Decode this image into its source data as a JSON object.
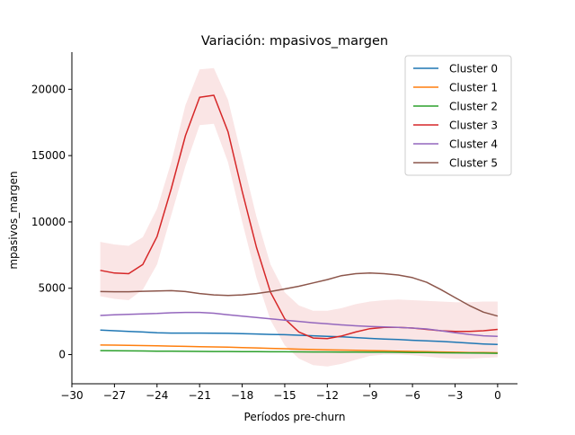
{
  "chart_data": {
    "type": "line",
    "title": "Variación: mpasivos_margen",
    "xlabel": "Períodos pre-churn",
    "ylabel": "mpasivos_margen",
    "xlim": [
      -30,
      1.4
    ],
    "ylim": [
      -2200,
      22800
    ],
    "xticks": [
      -30,
      -27,
      -24,
      -21,
      -18,
      -15,
      -12,
      -9,
      -6,
      -3,
      0
    ],
    "xtick_labels": [
      "−30",
      "−27",
      "−24",
      "−21",
      "−18",
      "−15",
      "−12",
      "−9",
      "−6",
      "−3",
      "0"
    ],
    "yticks": [
      0,
      5000,
      10000,
      15000,
      20000
    ],
    "ytick_labels": [
      "0",
      "5000",
      "10000",
      "15000",
      "20000"
    ],
    "grid": false,
    "legend_position": "top-right",
    "x": [
      -28,
      -27,
      -26,
      -25,
      -24,
      -23,
      -22,
      -21,
      -20,
      -19,
      -18,
      -17,
      -16,
      -15,
      -14,
      -13,
      -12,
      -11,
      -10,
      -9,
      -8,
      -7,
      -6,
      -5,
      -4,
      -3,
      -2,
      -1,
      0
    ],
    "series": [
      {
        "name": "Cluster 0",
        "color": "#1f77b4",
        "values": [
          1850,
          1800,
          1750,
          1700,
          1650,
          1620,
          1620,
          1620,
          1610,
          1600,
          1580,
          1550,
          1520,
          1500,
          1460,
          1420,
          1380,
          1340,
          1280,
          1220,
          1170,
          1130,
          1080,
          1040,
          990,
          930,
          860,
          800,
          760
        ],
        "band": null
      },
      {
        "name": "Cluster 1",
        "color": "#ff7f0e",
        "values": [
          720,
          710,
          700,
          680,
          660,
          640,
          620,
          600,
          580,
          560,
          530,
          500,
          470,
          440,
          410,
          380,
          360,
          340,
          320,
          300,
          280,
          260,
          240,
          220,
          200,
          180,
          160,
          150,
          140
        ],
        "band": null
      },
      {
        "name": "Cluster 2",
        "color": "#2ca02c",
        "values": [
          300,
          290,
          280,
          270,
          260,
          250,
          245,
          240,
          235,
          230,
          225,
          220,
          215,
          210,
          205,
          200,
          195,
          190,
          185,
          180,
          175,
          170,
          160,
          150,
          140,
          130,
          120,
          110,
          100
        ],
        "band": null
      },
      {
        "name": "Cluster 3",
        "color": "#d62728",
        "values": [
          6350,
          6150,
          6100,
          6800,
          8900,
          12500,
          16500,
          19400,
          19550,
          16800,
          12300,
          8100,
          4700,
          2700,
          1700,
          1250,
          1200,
          1400,
          1700,
          1950,
          2050,
          2050,
          2000,
          1900,
          1800,
          1750,
          1750,
          1800,
          1900
        ],
        "band": {
          "upper": [
            8500,
            8300,
            8200,
            8850,
            11000,
            14500,
            18800,
            21500,
            21600,
            19200,
            14800,
            10400,
            6800,
            4700,
            3700,
            3300,
            3300,
            3500,
            3800,
            4000,
            4100,
            4150,
            4100,
            4050,
            4000,
            3950,
            3950,
            4000,
            4000
          ],
          "lower": [
            4400,
            4200,
            4100,
            4900,
            6800,
            10500,
            14200,
            17300,
            17400,
            14500,
            10000,
            5800,
            2600,
            700,
            -300,
            -800,
            -900,
            -700,
            -400,
            -100,
            0,
            0,
            -50,
            -150,
            -250,
            -300,
            -300,
            -250,
            -200
          ]
        }
      },
      {
        "name": "Cluster 4",
        "color": "#9467bd",
        "values": [
          2950,
          3000,
          3030,
          3070,
          3100,
          3150,
          3180,
          3180,
          3120,
          3000,
          2900,
          2800,
          2700,
          2600,
          2500,
          2400,
          2320,
          2240,
          2170,
          2120,
          2080,
          2050,
          2000,
          1930,
          1800,
          1650,
          1520,
          1420,
          1380
        ],
        "band": null
      },
      {
        "name": "Cluster 5",
        "color": "#8c564b",
        "values": [
          4750,
          4740,
          4740,
          4770,
          4800,
          4820,
          4750,
          4600,
          4500,
          4450,
          4500,
          4600,
          4750,
          4950,
          5150,
          5400,
          5650,
          5950,
          6100,
          6150,
          6100,
          6000,
          5800,
          5450,
          4900,
          4300,
          3700,
          3200,
          2900
        ],
        "band": null
      }
    ]
  }
}
